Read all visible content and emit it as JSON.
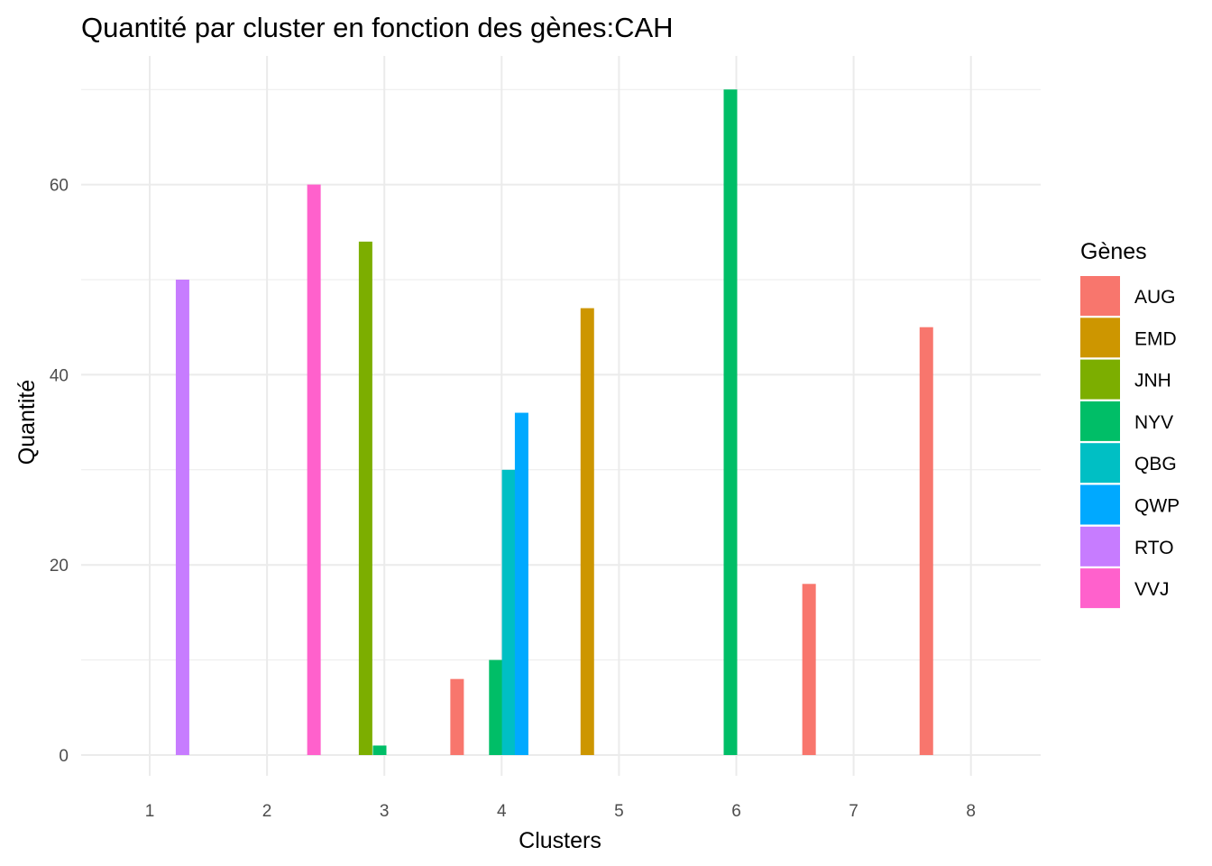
{
  "chart_data": {
    "type": "bar",
    "title": "Quantité par cluster en fonction des gènes:CAH",
    "xlabel": "Clusters",
    "ylabel": "Quantité",
    "categories": [
      "1",
      "2",
      "3",
      "4",
      "5",
      "6",
      "7",
      "8"
    ],
    "y_ticks": [
      "0",
      "20",
      "40",
      "60"
    ],
    "ylim": [
      0,
      70
    ],
    "grid": true,
    "legend": {
      "title": "Gènes",
      "placement": "right"
    },
    "series": [
      {
        "name": "AUG",
        "color": "#F8766D"
      },
      {
        "name": "EMD",
        "color": "#CD9600"
      },
      {
        "name": "JNH",
        "color": "#7CAE00"
      },
      {
        "name": "NYV",
        "color": "#00BE67"
      },
      {
        "name": "QBG",
        "color": "#00BFC4"
      },
      {
        "name": "QWP",
        "color": "#00A9FF"
      },
      {
        "name": "RTO",
        "color": "#C77CFF"
      },
      {
        "name": "VVJ",
        "color": "#FF61CC"
      }
    ],
    "bars": [
      {
        "gene": "RTO",
        "x": 1.28,
        "value": 50
      },
      {
        "gene": "VVJ",
        "x": 2.4,
        "value": 60
      },
      {
        "gene": "JNH",
        "x": 2.84,
        "value": 54
      },
      {
        "gene": "NYV",
        "x": 2.96,
        "value": 1
      },
      {
        "gene": "AUG",
        "x": 3.62,
        "value": 8
      },
      {
        "gene": "NYV",
        "x": 3.95,
        "value": 10
      },
      {
        "gene": "QBG",
        "x": 4.06,
        "value": 30
      },
      {
        "gene": "QWP",
        "x": 4.17,
        "value": 36
      },
      {
        "gene": "EMD",
        "x": 4.73,
        "value": 47
      },
      {
        "gene": "NYV",
        "x": 5.95,
        "value": 70
      },
      {
        "gene": "AUG",
        "x": 6.62,
        "value": 18
      },
      {
        "gene": "AUG",
        "x": 7.62,
        "value": 45
      }
    ]
  }
}
